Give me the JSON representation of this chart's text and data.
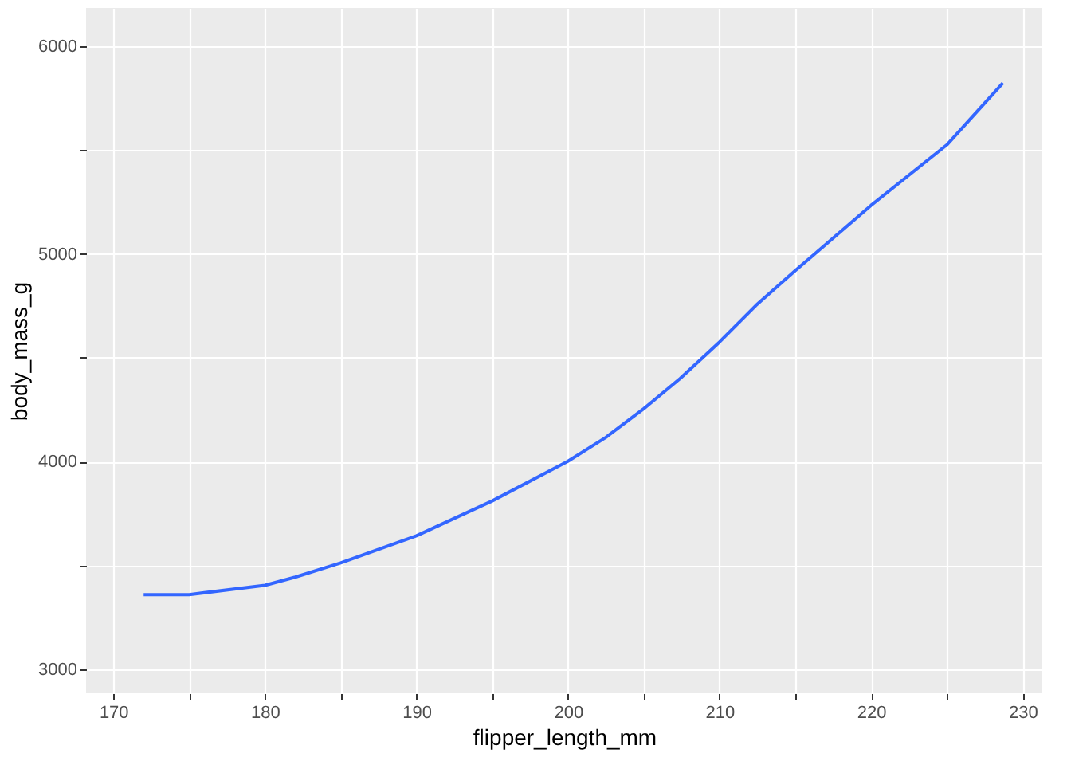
{
  "chart_data": {
    "type": "line",
    "xlabel": "flipper_length_mm",
    "ylabel": "body_mass_g",
    "x": [
      172,
      175,
      180,
      182,
      185,
      190,
      195,
      200,
      202.5,
      205,
      207.4,
      210,
      212.4,
      215,
      220,
      225,
      228.7
    ],
    "series": [
      {
        "color": "#3366ff",
        "values": [
          3360,
          3360,
          3405,
          3444,
          3513,
          3643,
          3811,
          4002,
          4117,
          4255,
          4400,
          4576,
          4752,
          4920,
          5234,
          5525,
          5823
        ]
      }
    ],
    "xlim": [
      168.2,
      231.3
    ],
    "ylim": [
      2885,
      6184
    ],
    "xticks": [
      170,
      {
        "value": 175,
        "label": null
      },
      180,
      {
        "value": 185,
        "label": null
      },
      190,
      {
        "value": 195,
        "label": null
      },
      200,
      {
        "value": 205,
        "label": null
      },
      210,
      {
        "value": 215,
        "label": null
      },
      220,
      {
        "value": 225,
        "label": null
      },
      230
    ],
    "yticks": [
      3000,
      {
        "value": 3500,
        "label": null
      },
      4000,
      {
        "value": 4500,
        "label": null
      },
      5000,
      {
        "value": 5500,
        "label": null
      },
      6000
    ],
    "grid": true,
    "marker": "none",
    "line_style": "solid"
  }
}
